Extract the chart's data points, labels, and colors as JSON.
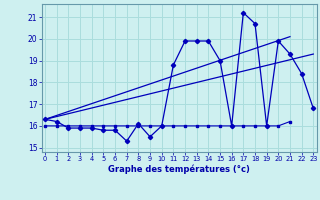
{
  "xlabel": "Graphe des températures (°c)",
  "background_color": "#cef0f0",
  "grid_color": "#aadddd",
  "line_color": "#0000bb",
  "hours": [
    0,
    1,
    2,
    3,
    4,
    5,
    6,
    7,
    8,
    9,
    10,
    11,
    12,
    13,
    14,
    15,
    16,
    17,
    18,
    19,
    20,
    21,
    22,
    23
  ],
  "temp_main": [
    16.3,
    16.2,
    15.9,
    15.9,
    15.9,
    15.8,
    15.8,
    15.3,
    16.1,
    15.5,
    16.0,
    18.8,
    19.9,
    19.9,
    19.9,
    19.0,
    16.0,
    21.2,
    20.7,
    16.0,
    19.9,
    19.3,
    18.4,
    16.8
  ],
  "temp_flat": [
    16.0,
    16.0,
    16.0,
    16.0,
    16.0,
    16.0,
    16.0,
    16.0,
    16.0,
    16.0,
    16.0,
    16.0,
    16.0,
    16.0,
    16.0,
    16.0,
    16.0,
    16.0,
    16.0,
    16.0,
    16.0,
    16.2
  ],
  "temp_flat_x": [
    0,
    1,
    2,
    3,
    4,
    5,
    6,
    7,
    8,
    9,
    10,
    11,
    12,
    13,
    14,
    15,
    16,
    17,
    18,
    19,
    20,
    21
  ],
  "trend1_x": [
    0,
    23
  ],
  "trend1_y": [
    16.3,
    19.3
  ],
  "trend2_x": [
    0,
    21
  ],
  "trend2_y": [
    16.3,
    20.1
  ],
  "ylim": [
    14.8,
    21.6
  ],
  "xlim": [
    -0.3,
    23.3
  ],
  "yticks": [
    15,
    16,
    17,
    18,
    19,
    20,
    21
  ],
  "xticks": [
    0,
    1,
    2,
    3,
    4,
    5,
    6,
    7,
    8,
    9,
    10,
    11,
    12,
    13,
    14,
    15,
    16,
    17,
    18,
    19,
    20,
    21,
    22,
    23
  ]
}
